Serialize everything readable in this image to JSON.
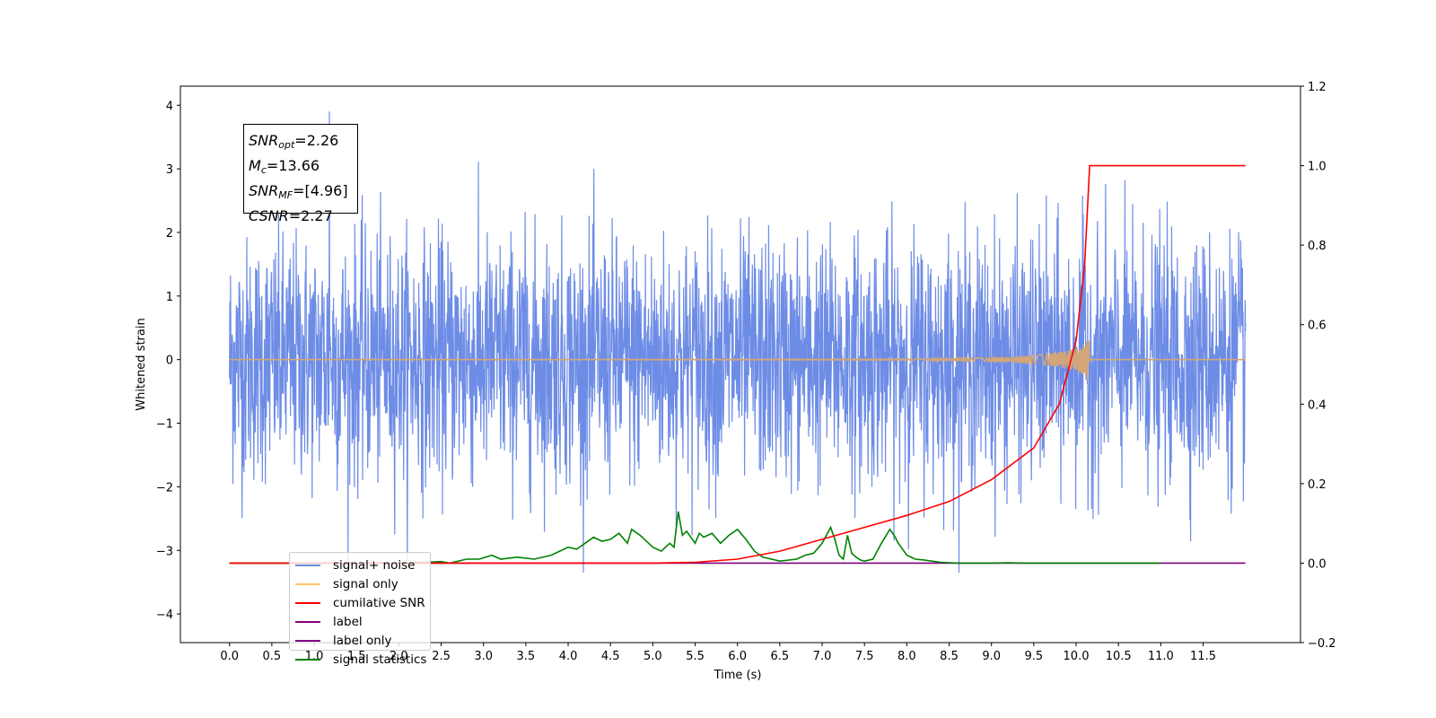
{
  "chart_data": {
    "type": "line",
    "xlabel": "Time (s)",
    "ylabel": "Whitened strain",
    "xlim": [
      -0.58,
      12.65
    ],
    "ylim": [
      -4.45,
      4.3
    ],
    "y2lim": [
      -0.2,
      1.2
    ],
    "x_ticks": [
      "0.0",
      "0.5",
      "1.0",
      "1.5",
      "2.0",
      "2.5",
      "3.0",
      "3.5",
      "4.0",
      "4.5",
      "5.0",
      "5.5",
      "6.0",
      "6.5",
      "7.0",
      "7.5",
      "8.0",
      "8.5",
      "9.0",
      "9.5",
      "10.0",
      "10.5",
      "11.0",
      "11.5"
    ],
    "y_ticks": [
      "4",
      "3",
      "2",
      "1",
      "0",
      "−1",
      "−2",
      "−3",
      "−4"
    ],
    "y2_ticks": [
      "1.2",
      "1.0",
      "0.8",
      "0.6",
      "0.4",
      "0.2",
      "0.0",
      "−0.2"
    ],
    "annotation": {
      "snr_opt": "=2.26",
      "mc": "=13.66",
      "snr_mf": "=[4.96]",
      "csnr": "=2.27"
    },
    "legend": {
      "placement": "lower-left",
      "entries": [
        {
          "label": "signal+ noise",
          "color": "#6d8ce6"
        },
        {
          "label": "signal only",
          "color": "#ffc46b"
        },
        {
          "label": "cumilative SNR",
          "color": "#ff0000"
        },
        {
          "label": "label",
          "color": "#800080"
        },
        {
          "label": "label only",
          "color": "#800080"
        },
        {
          "label": "signal statistics",
          "color": "#008000"
        }
      ]
    },
    "series": [
      {
        "name": "signal+ noise",
        "axis": "left",
        "color": "#6d8ce6",
        "x_range": [
          0.0,
          12.0
        ],
        "envelope_min": -3.35,
        "envelope_max": 3.9,
        "note_max_at": 1.18
      },
      {
        "name": "signal only",
        "axis": "left",
        "color": "#d2a679",
        "x": [
          0.0,
          6.0,
          8.0,
          9.0,
          9.5,
          9.8,
          10.0,
          10.1,
          10.15,
          10.16,
          12.0
        ],
        "amplitude": [
          0.0,
          0.005,
          0.01,
          0.03,
          0.07,
          0.12,
          0.18,
          0.25,
          0.35,
          0.0,
          0.0
        ]
      },
      {
        "name": "cumilative SNR",
        "axis": "right",
        "color": "#ff0000",
        "x": [
          0.0,
          5.0,
          5.5,
          6.0,
          6.5,
          7.0,
          7.5,
          8.0,
          8.5,
          9.0,
          9.5,
          9.8,
          10.0,
          10.1,
          10.16,
          10.17,
          12.0
        ],
        "y": [
          0.0,
          0.0,
          0.002,
          0.01,
          0.03,
          0.06,
          0.09,
          0.12,
          0.155,
          0.21,
          0.29,
          0.4,
          0.56,
          0.75,
          1.0,
          1.0,
          1.0
        ]
      },
      {
        "name": "label",
        "axis": "right",
        "color": "#800080",
        "x": [
          0.0,
          12.0
        ],
        "y": [
          0.0,
          0.0
        ]
      },
      {
        "name": "signal statistics",
        "axis": "right",
        "color": "#008000",
        "x": [
          0.0,
          1.9,
          2.3,
          2.5,
          2.6,
          2.8,
          2.95,
          3.1,
          3.2,
          3.4,
          3.6,
          3.8,
          3.9,
          4.0,
          4.1,
          4.2,
          4.3,
          4.4,
          4.5,
          4.6,
          4.7,
          4.75,
          4.85,
          4.95,
          5.0,
          5.1,
          5.2,
          5.25,
          5.3,
          5.35,
          5.4,
          5.5,
          5.55,
          5.6,
          5.65,
          5.7,
          5.8,
          5.9,
          6.0,
          6.1,
          6.2,
          6.3,
          6.5,
          6.7,
          6.8,
          6.9,
          7.0,
          7.1,
          7.15,
          7.2,
          7.25,
          7.3,
          7.35,
          7.4,
          7.45,
          7.5,
          7.6,
          7.7,
          7.8,
          7.85,
          7.9,
          8.0,
          8.1,
          8.2,
          8.4,
          8.6,
          9.0,
          9.2,
          9.4,
          11.0
        ],
        "y": [
          0.0,
          0.0,
          0.002,
          0.004,
          0.0,
          0.01,
          0.01,
          0.02,
          0.01,
          0.015,
          0.01,
          0.02,
          0.03,
          0.04,
          0.035,
          0.05,
          0.065,
          0.055,
          0.06,
          0.075,
          0.05,
          0.085,
          0.07,
          0.05,
          0.04,
          0.03,
          0.05,
          0.04,
          0.13,
          0.07,
          0.08,
          0.05,
          0.075,
          0.065,
          0.07,
          0.075,
          0.05,
          0.07,
          0.085,
          0.06,
          0.03,
          0.015,
          0.005,
          0.01,
          0.02,
          0.025,
          0.05,
          0.09,
          0.06,
          0.02,
          0.01,
          0.07,
          0.025,
          0.015,
          0.008,
          0.005,
          0.01,
          0.05,
          0.085,
          0.07,
          0.05,
          0.02,
          0.01,
          0.008,
          0.002,
          0.0,
          0.0,
          0.001,
          0.0,
          0.0
        ]
      }
    ]
  }
}
